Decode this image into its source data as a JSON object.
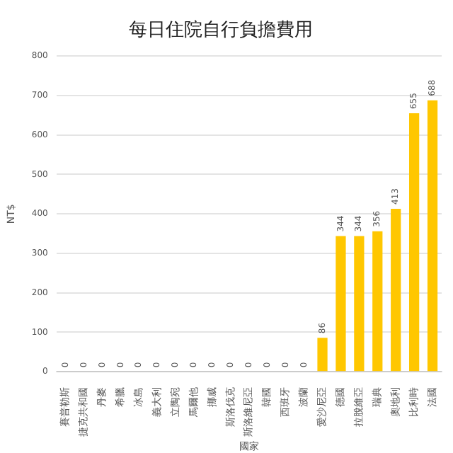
{
  "chart_data": {
    "type": "bar",
    "title": "每日住院自行負擔費用",
    "xlabel": "國家",
    "ylabel": "NT$",
    "categories": [
      "賽普勒斯",
      "捷克共和國",
      "丹麥",
      "希臘",
      "冰島",
      "義大利",
      "立陶宛",
      "馬爾他",
      "挪威",
      "斯洛伐克",
      "斯洛維尼亞",
      "韓國",
      "西班牙",
      "波蘭",
      "愛沙尼亞",
      "德國",
      "拉脫維亞",
      "瑞典",
      "奧地利",
      "比利時",
      "法國"
    ],
    "values": [
      0,
      0,
      0,
      0,
      0,
      0,
      0,
      0,
      0,
      0,
      0,
      0,
      0,
      0,
      86,
      344,
      344,
      356,
      413,
      655,
      688
    ],
    "color": "#ffc700",
    "ylim": [
      0,
      800
    ],
    "yticks": [
      0,
      100,
      200,
      300,
      400,
      500,
      600,
      700,
      800
    ],
    "grid": "y",
    "data_labels": true
  }
}
